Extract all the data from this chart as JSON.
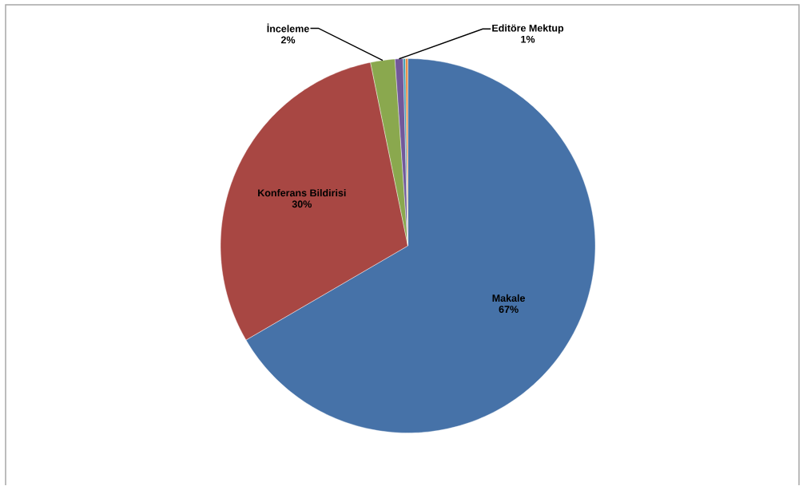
{
  "chart_data": {
    "type": "pie",
    "categories": [
      "Makale",
      "Konferans Bildirisi",
      "İnceleme",
      "Editöre Mektup",
      null,
      null
    ],
    "values": [
      66.6,
      30.2,
      2.1,
      0.7,
      0.2,
      0.2
    ],
    "colors": [
      "#4672a8",
      "#a84743",
      "#8aa84e",
      "#72589a",
      "#43a0b5",
      "#e8893e"
    ],
    "value_labels": [
      "67%",
      "30%",
      "2%",
      "1%",
      null,
      null
    ]
  }
}
